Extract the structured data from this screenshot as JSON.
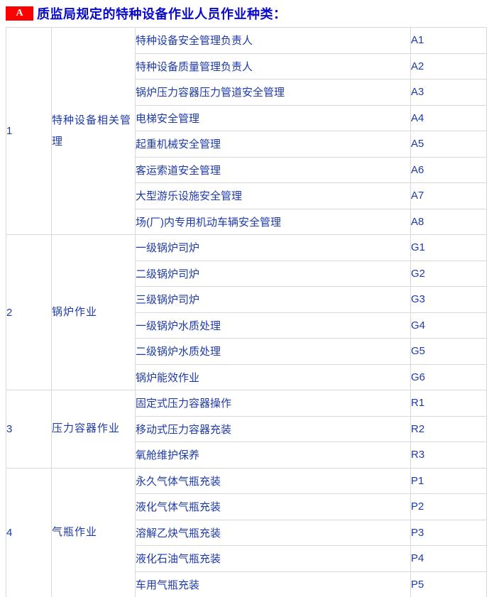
{
  "header": {
    "badge_label": "A",
    "title": "质监局规定的特种设备作业人员作业种类："
  },
  "colors": {
    "badge_background": "#ff0000",
    "badge_text": "#ffffff",
    "title_text": "#0909cc",
    "cell_text": "#1e3aa8",
    "table_border": "#d8d8d8"
  },
  "table": {
    "groups": [
      {
        "no": "1",
        "category": "特种设备相关管理",
        "items": [
          {
            "name": "特种设备安全管理负责人",
            "code": "A1"
          },
          {
            "name": "特种设备质量管理负责人",
            "code": "A2"
          },
          {
            "name": "锅炉压力容器压力管道安全管理",
            "code": "A3"
          },
          {
            "name": "电梯安全管理",
            "code": "A4"
          },
          {
            "name": "起重机械安全管理",
            "code": "A5"
          },
          {
            "name": "客运索道安全管理",
            "code": "A6"
          },
          {
            "name": "大型游乐设施安全管理",
            "code": "A7"
          },
          {
            "name": "场(厂)内专用机动车辆安全管理",
            "code": "A8"
          }
        ]
      },
      {
        "no": "2",
        "category": "锅炉作业",
        "items": [
          {
            "name": "一级锅炉司炉",
            "code": "G1"
          },
          {
            "name": "二级锅炉司炉",
            "code": "G2"
          },
          {
            "name": "三级锅炉司炉",
            "code": "G3"
          },
          {
            "name": "一级锅炉水质处理",
            "code": "G4"
          },
          {
            "name": "二级锅炉水质处理",
            "code": "G5"
          },
          {
            "name": "锅炉能效作业",
            "code": "G6"
          }
        ]
      },
      {
        "no": "3",
        "category": "压力容器作业",
        "items": [
          {
            "name": "固定式压力容器操作",
            "code": "R1"
          },
          {
            "name": "移动式压力容器充装",
            "code": "R2"
          },
          {
            "name": "氧舱维护保养",
            "code": "R3"
          }
        ]
      },
      {
        "no": "4",
        "category": "气瓶作业",
        "items": [
          {
            "name": "永久气体气瓶充装",
            "code": "P1"
          },
          {
            "name": "液化气体气瓶充装",
            "code": "P2"
          },
          {
            "name": "溶解乙炔气瓶充装",
            "code": "P3"
          },
          {
            "name": "液化石油气瓶充装",
            "code": "P4"
          },
          {
            "name": "车用气瓶充装",
            "code": "P5"
          }
        ]
      }
    ]
  }
}
